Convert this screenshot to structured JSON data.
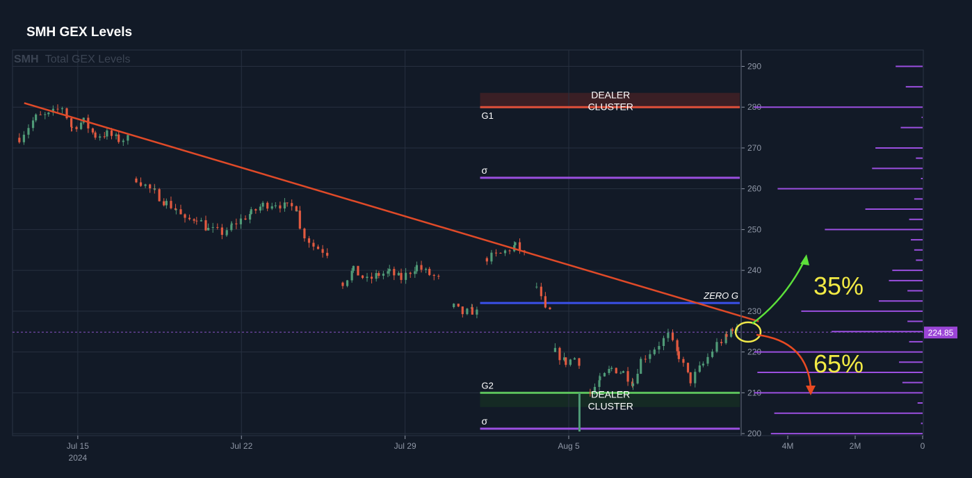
{
  "page": {
    "title": "SMH GEX Levels",
    "watermark_symbol": "SMH",
    "watermark_text": "Total GEX Levels"
  },
  "chart_data": {
    "type": "candlestick",
    "symbol": "SMH",
    "y_axis": {
      "ticks": [
        200,
        210,
        220,
        230,
        240,
        250,
        260,
        270,
        280,
        290
      ],
      "range": [
        199.5,
        294
      ]
    },
    "x_axis": {
      "ticks": [
        {
          "label": "Jul 15",
          "sublabel": "2024",
          "date": "2024-07-15"
        },
        {
          "label": "Jul 22",
          "sublabel": "",
          "date": "2024-07-22"
        },
        {
          "label": "Jul 29",
          "sublabel": "",
          "date": "2024-07-29"
        },
        {
          "label": "Aug 5",
          "sublabel": "",
          "date": "2024-08-05"
        }
      ],
      "range": [
        "2024-07-12 17:00",
        "2024-08-12 21:00"
      ]
    },
    "last_price": 224.85,
    "last_price_label": "224.85",
    "price_path": [
      [
        "2024-07-13 00:00",
        272.5
      ],
      [
        "2024-07-13 17:00",
        277.5
      ],
      [
        "2024-07-14 06:00",
        278
      ],
      [
        "2024-07-14 20:00",
        280
      ],
      [
        "2024-07-15 06:00",
        275
      ],
      [
        "2024-07-15 18:00",
        276.5
      ],
      [
        "2024-07-16 06:00",
        273
      ],
      [
        "2024-07-16 18:00",
        273.5
      ],
      [
        "2024-07-17 06:00",
        272
      ],
      [
        "2024-07-17 20:00",
        272.5
      ],
      [
        "2024-07-18 00:00",
        262.5
      ],
      [
        "2024-07-18 19:00",
        259
      ],
      [
        "2024-07-19 07:00",
        256.5
      ],
      [
        "2024-07-19 17:00",
        255
      ],
      [
        "2024-07-20 02:00",
        252
      ],
      [
        "2024-07-20 14:00",
        253
      ],
      [
        "2024-07-21 02:00",
        250
      ],
      [
        "2024-07-21 21:00",
        249
      ],
      [
        "2024-07-22 02:00",
        251
      ],
      [
        "2024-07-22 22:00",
        254
      ],
      [
        "2024-07-23 10:00",
        256
      ],
      [
        "2024-07-23 23:00",
        256.5
      ],
      [
        "2024-07-24 11:00",
        255.5
      ],
      [
        "2024-07-24 21:00",
        255.5
      ],
      [
        "2024-07-25 00:00",
        250
      ],
      [
        "2024-07-25 14:00",
        246
      ],
      [
        "2024-07-26 07:00",
        244
      ],
      [
        "2024-07-26 20:00",
        237
      ],
      [
        "2024-07-27 07:00",
        240
      ],
      [
        "2024-07-27 21:00",
        237.5
      ],
      [
        "2024-07-28 09:00",
        239
      ],
      [
        "2024-07-28 20:00",
        239.5
      ],
      [
        "2024-07-29 08:00",
        238
      ],
      [
        "2024-07-30 00:00",
        241
      ],
      [
        "2024-07-30 13:00",
        239
      ],
      [
        "2024-07-31 02:00",
        237.5
      ],
      [
        "2024-07-31 14:00",
        231
      ],
      [
        "2024-07-31 23:00",
        229.5
      ],
      [
        "2024-08-01 09:00",
        230
      ],
      [
        "2024-08-01 17:00",
        229.5
      ],
      [
        "2024-08-02 00:00",
        243
      ],
      [
        "2024-08-02 14:00",
        244
      ],
      [
        "2024-08-03 05:00",
        246
      ],
      [
        "2024-08-03 15:00",
        244
      ],
      [
        "2024-08-04 03:00",
        236
      ],
      [
        "2024-08-04 12:00",
        230
      ],
      [
        "2024-08-04 20:00",
        230
      ],
      [
        "2024-08-04 22:00",
        220
      ],
      [
        "2024-08-05 09:00",
        217.5
      ],
      [
        "2024-08-05 18:00",
        218.5
      ],
      [
        "2024-08-06 02:00",
        217
      ],
      [
        "2024-08-06 10:00",
        210
      ],
      [
        "2024-08-06 20:00",
        213
      ],
      [
        "2024-08-07 08:00",
        216
      ],
      [
        "2024-08-07 20:00",
        215
      ],
      [
        "2024-08-08 06:00",
        212.5
      ],
      [
        "2024-08-08 14:00",
        218
      ],
      [
        "2024-08-09 04:00",
        221
      ],
      [
        "2024-08-09 18:00",
        224
      ],
      [
        "2024-08-10 05:00",
        219
      ],
      [
        "2024-08-10 17:00",
        213
      ],
      [
        "2024-08-11 06:00",
        217
      ],
      [
        "2024-08-11 20:00",
        222
      ],
      [
        "2024-08-12 06:00",
        223.5
      ],
      [
        "2024-08-12 12:00",
        226
      ],
      [
        "2024-08-12 20:00",
        224.85
      ]
    ],
    "trendline": {
      "start": [
        "2024-07-13 05:00",
        281
      ],
      "end": [
        "2024-08-13 15:00",
        227.5
      ]
    },
    "levels": [
      {
        "name": "G1",
        "label": "G1",
        "value": 280,
        "color": "#e0503a",
        "start": "2024-08-01 17:00"
      },
      {
        "name": "sigma-upper",
        "label": "σ",
        "value": 262.7,
        "color": "#9b4fe0",
        "start": "2024-08-01 17:00"
      },
      {
        "name": "zero-gamma",
        "label": "ZERO G",
        "value": 232,
        "color": "#3a50e8",
        "start": "2024-08-01 17:00"
      },
      {
        "name": "G2",
        "label": "G2",
        "value": 210,
        "color": "#5cc25c",
        "start": "2024-08-01 17:00"
      },
      {
        "name": "sigma-lower",
        "label": "σ",
        "value": 201.2,
        "color": "#9b4fe0",
        "start": "2024-08-01 17:00"
      }
    ],
    "dealer_clusters": [
      {
        "label_line1": "DEALER",
        "label_line2": "CLUSTER",
        "from": 280,
        "to": 283.5,
        "color": "#3a1f25"
      },
      {
        "label_line1": "DEALER",
        "label_line2": "CLUSTER",
        "from": 206.5,
        "to": 210,
        "color": "#152a24"
      }
    ],
    "scenarios": [
      {
        "label": "35%",
        "direction": "up",
        "color": "#5ce03a"
      },
      {
        "label": "65%",
        "direction": "down",
        "color": "#e84a22"
      }
    ],
    "gex_profile": {
      "x_ticks": [
        {
          "label": "4M",
          "value": 4000000
        },
        {
          "label": "2M",
          "value": 2000000
        },
        {
          "label": "0",
          "value": 0
        }
      ],
      "bars": [
        {
          "strike": 200,
          "value": 4500000
        },
        {
          "strike": 202.5,
          "value": 50000
        },
        {
          "strike": 205,
          "value": 4400000
        },
        {
          "strike": 207.5,
          "value": 150000
        },
        {
          "strike": 210,
          "value": 5000000
        },
        {
          "strike": 212.5,
          "value": 600000
        },
        {
          "strike": 215,
          "value": 4900000
        },
        {
          "strike": 217.5,
          "value": 700000
        },
        {
          "strike": 220,
          "value": 5000000
        },
        {
          "strike": 222.5,
          "value": 400000
        },
        {
          "strike": 225,
          "value": 2700000
        },
        {
          "strike": 227.5,
          "value": 450000
        },
        {
          "strike": 230,
          "value": 3600000
        },
        {
          "strike": 232.5,
          "value": 1300000
        },
        {
          "strike": 235,
          "value": 450000
        },
        {
          "strike": 237.5,
          "value": 1000000
        },
        {
          "strike": 240,
          "value": 900000
        },
        {
          "strike": 242.5,
          "value": 200000
        },
        {
          "strike": 245,
          "value": 250000
        },
        {
          "strike": 247.5,
          "value": 350000
        },
        {
          "strike": 250,
          "value": 2900000
        },
        {
          "strike": 252.5,
          "value": 400000
        },
        {
          "strike": 255,
          "value": 1700000
        },
        {
          "strike": 257.5,
          "value": 250000
        },
        {
          "strike": 260,
          "value": 4300000
        },
        {
          "strike": 262.5,
          "value": 50000
        },
        {
          "strike": 265,
          "value": 1500000
        },
        {
          "strike": 267.5,
          "value": 200000
        },
        {
          "strike": 270,
          "value": 1400000
        },
        {
          "strike": 275,
          "value": 650000
        },
        {
          "strike": 277.5,
          "value": 30000
        },
        {
          "strike": 280,
          "value": 5000000
        },
        {
          "strike": 285,
          "value": 500000
        },
        {
          "strike": 290,
          "value": 800000
        }
      ]
    }
  }
}
